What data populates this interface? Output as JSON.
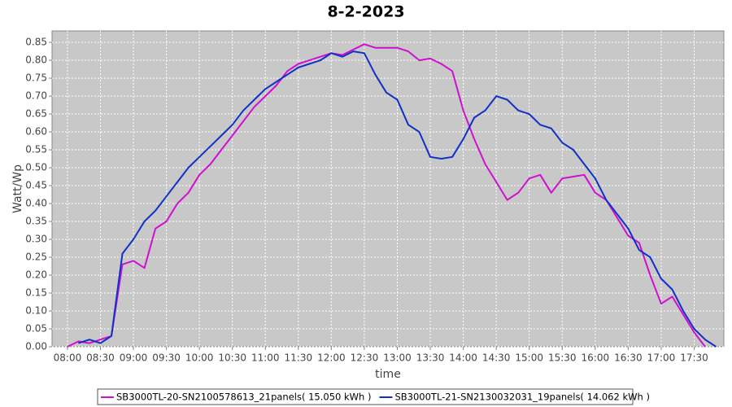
{
  "chart_data": {
    "type": "line",
    "title": "8-2-2023",
    "xlabel": "time",
    "ylabel": "Watt/Wp",
    "x": [
      480,
      490,
      500,
      510,
      520,
      530,
      540,
      550,
      560,
      570,
      580,
      590,
      600,
      610,
      620,
      630,
      640,
      650,
      660,
      670,
      680,
      690,
      700,
      710,
      720,
      730,
      740,
      750,
      760,
      770,
      780,
      790,
      800,
      810,
      820,
      830,
      840,
      850,
      860,
      870,
      880,
      890,
      900,
      910,
      920,
      930,
      940,
      950,
      960,
      970,
      980,
      990,
      1000,
      1010,
      1020,
      1030,
      1040,
      1050,
      1060,
      1070
    ],
    "series": [
      {
        "name": "SB3000TL-20-SN2100578613_21panels( 15.050 kWh )",
        "color": "#d010d0",
        "values": [
          0.0,
          0.015,
          0.01,
          0.02,
          0.03,
          0.23,
          0.24,
          0.22,
          0.33,
          0.35,
          0.4,
          0.43,
          0.48,
          0.51,
          0.55,
          0.59,
          0.63,
          0.67,
          0.7,
          0.73,
          0.77,
          0.79,
          0.8,
          0.81,
          0.82,
          0.815,
          0.83,
          0.845,
          0.835,
          0.835,
          0.835,
          0.825,
          0.8,
          0.805,
          0.79,
          0.77,
          0.66,
          0.58,
          0.51,
          0.46,
          0.41,
          0.43,
          0.47,
          0.48,
          0.43,
          0.47,
          0.475,
          0.48,
          0.43,
          0.41,
          0.36,
          0.31,
          0.29,
          0.2,
          0.12,
          0.14,
          0.09,
          0.04,
          0.0,
          null
        ]
      },
      {
        "name": "SB3000TL-21-SN2130032031_19panels( 14.062 kWh )",
        "color": "#1030c8",
        "values": [
          null,
          0.01,
          0.02,
          0.01,
          0.03,
          0.26,
          0.3,
          0.35,
          0.38,
          0.42,
          0.46,
          0.5,
          0.53,
          0.56,
          0.59,
          0.62,
          0.66,
          0.69,
          0.72,
          0.74,
          0.76,
          0.78,
          0.79,
          0.8,
          0.82,
          0.81,
          0.825,
          0.82,
          0.76,
          0.71,
          0.69,
          0.62,
          0.6,
          0.53,
          0.525,
          0.53,
          0.58,
          0.64,
          0.66,
          0.7,
          0.69,
          0.66,
          0.65,
          0.62,
          0.61,
          0.57,
          0.55,
          0.51,
          0.47,
          0.41,
          0.37,
          0.33,
          0.27,
          0.25,
          0.19,
          0.16,
          0.1,
          0.05,
          0.02,
          0.0
        ]
      }
    ],
    "xlim": [
      466,
      1077
    ],
    "xticks": [
      {
        "value": 480,
        "label": "08:00"
      },
      {
        "value": 510,
        "label": "08:30"
      },
      {
        "value": 540,
        "label": "09:00"
      },
      {
        "value": 570,
        "label": "09:30"
      },
      {
        "value": 600,
        "label": "10:00"
      },
      {
        "value": 630,
        "label": "10:30"
      },
      {
        "value": 660,
        "label": "11:00"
      },
      {
        "value": 690,
        "label": "11:30"
      },
      {
        "value": 720,
        "label": "12:00"
      },
      {
        "value": 750,
        "label": "12:30"
      },
      {
        "value": 780,
        "label": "13:00"
      },
      {
        "value": 810,
        "label": "13:30"
      },
      {
        "value": 840,
        "label": "14:00"
      },
      {
        "value": 870,
        "label": "14:30"
      },
      {
        "value": 900,
        "label": "15:00"
      },
      {
        "value": 930,
        "label": "15:30"
      },
      {
        "value": 960,
        "label": "16:00"
      },
      {
        "value": 990,
        "label": "16:30"
      },
      {
        "value": 1020,
        "label": "17:00"
      },
      {
        "value": 1050,
        "label": "17:30"
      }
    ],
    "ylim": [
      0,
      0.882
    ],
    "yticks": [
      {
        "value": 0,
        "label": "0.00"
      },
      {
        "value": 0.05,
        "label": "0.05"
      },
      {
        "value": 0.1,
        "label": "0.10"
      },
      {
        "value": 0.15,
        "label": "0.15"
      },
      {
        "value": 0.2,
        "label": "0.20"
      },
      {
        "value": 0.25,
        "label": "0.25"
      },
      {
        "value": 0.3,
        "label": "0.30"
      },
      {
        "value": 0.35,
        "label": "0.35"
      },
      {
        "value": 0.4,
        "label": "0.40"
      },
      {
        "value": 0.45,
        "label": "0.45"
      },
      {
        "value": 0.5,
        "label": "0.50"
      },
      {
        "value": 0.55,
        "label": "0.55"
      },
      {
        "value": 0.6,
        "label": "0.60"
      },
      {
        "value": 0.65,
        "label": "0.65"
      },
      {
        "value": 0.7,
        "label": "0.70"
      },
      {
        "value": 0.75,
        "label": "0.75"
      },
      {
        "value": 0.8,
        "label": "0.80"
      },
      {
        "value": 0.85,
        "label": "0.85"
      }
    ],
    "grid": true,
    "legend": "bottom"
  }
}
